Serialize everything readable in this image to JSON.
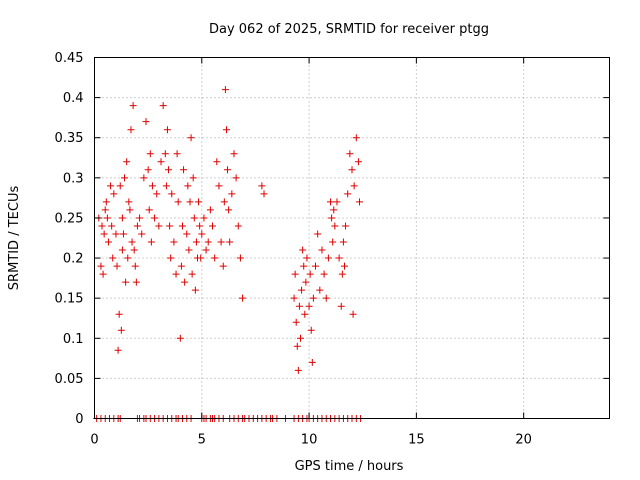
{
  "chart_data": {
    "type": "scatter",
    "title": "Day 062 of 2025, SRMTID for receiver ptgg",
    "xlabel": "GPS time / hours",
    "ylabel": "SRMTID / TECUs",
    "xlim": [
      0,
      24
    ],
    "ylim": [
      0,
      0.45
    ],
    "xticks": [
      0,
      5,
      10,
      15,
      20
    ],
    "xtick_labels": [
      "0",
      "5",
      "10",
      "15",
      "20"
    ],
    "yticks": [
      0,
      0.05,
      0.1,
      0.15,
      0.2,
      0.25,
      0.3,
      0.35,
      0.4,
      0.45
    ],
    "ytick_labels": [
      "0",
      "0.05",
      "0.1",
      "0.15",
      "0.2",
      "0.25",
      "0.3",
      "0.35",
      "0.4",
      "0.45"
    ],
    "grid": true,
    "marker": "+",
    "series": [
      {
        "name": "SRMTID",
        "color": "#e00000",
        "x": [
          0.2,
          0.3,
          0.35,
          0.4,
          0.45,
          0.5,
          0.55,
          0.6,
          0.65,
          0.75,
          0.8,
          0.85,
          0.9,
          1.0,
          1.05,
          1.1,
          1.15,
          1.2,
          1.25,
          1.3,
          1.3,
          1.35,
          1.4,
          1.45,
          1.5,
          1.55,
          1.6,
          1.65,
          1.7,
          1.75,
          1.8,
          1.85,
          1.9,
          1.95,
          2.0,
          2.1,
          2.2,
          2.3,
          2.4,
          2.5,
          2.55,
          2.6,
          2.65,
          2.7,
          2.8,
          2.9,
          3.0,
          3.1,
          3.2,
          3.3,
          3.35,
          3.4,
          3.45,
          3.5,
          3.55,
          3.6,
          3.7,
          3.8,
          3.85,
          3.9,
          4.0,
          4.05,
          4.1,
          4.15,
          4.2,
          4.3,
          4.35,
          4.4,
          4.45,
          4.5,
          4.55,
          4.6,
          4.65,
          4.7,
          4.75,
          4.8,
          4.85,
          4.9,
          4.95,
          5.0,
          5.1,
          5.2,
          5.3,
          5.4,
          5.5,
          5.6,
          5.7,
          5.8,
          5.9,
          6.0,
          6.05,
          6.1,
          6.15,
          6.2,
          6.25,
          6.3,
          6.4,
          6.5,
          6.6,
          6.7,
          6.8,
          6.9,
          7.8,
          7.9,
          9.3,
          9.35,
          9.4,
          9.45,
          9.5,
          9.55,
          9.6,
          9.65,
          9.7,
          9.75,
          9.8,
          9.85,
          9.9,
          10.0,
          10.05,
          10.1,
          10.15,
          10.2,
          10.3,
          10.4,
          10.5,
          10.6,
          10.7,
          10.8,
          10.9,
          11.0,
          11.05,
          11.1,
          11.15,
          11.2,
          11.3,
          11.4,
          11.5,
          11.55,
          11.6,
          11.65,
          11.7,
          11.8,
          11.9,
          12.0,
          12.05,
          12.1,
          12.2,
          12.3,
          12.35,
          0.1,
          0.3,
          0.5,
          0.7,
          0.9,
          1.1,
          1.2,
          2.0,
          2.1,
          2.3,
          2.4,
          2.6,
          2.8,
          3.0,
          3.2,
          3.4,
          3.6,
          3.8,
          3.9,
          4.1,
          4.3,
          4.5,
          5.0,
          5.1,
          5.2,
          5.4,
          5.5,
          5.6,
          5.8,
          6.0,
          6.3,
          6.5,
          6.7,
          6.9,
          7.0,
          7.2,
          7.4,
          7.6,
          7.8,
          8.0,
          8.2,
          8.3,
          8.5,
          8.9,
          9.3,
          9.5,
          9.7,
          9.9,
          10.0,
          10.2,
          10.4,
          10.6,
          10.8,
          11.0,
          11.2,
          11.4,
          11.6,
          11.8,
          12.0,
          12.2,
          12.4
        ],
        "y": [
          0.25,
          0.19,
          0.24,
          0.18,
          0.23,
          0.26,
          0.27,
          0.25,
          0.22,
          0.29,
          0.24,
          0.2,
          0.28,
          0.23,
          0.19,
          0.085,
          0.13,
          0.29,
          0.11,
          0.21,
          0.25,
          0.23,
          0.3,
          0.17,
          0.32,
          0.2,
          0.27,
          0.26,
          0.36,
          0.22,
          0.39,
          0.21,
          0.19,
          0.17,
          0.24,
          0.25,
          0.23,
          0.3,
          0.37,
          0.31,
          0.26,
          0.33,
          0.22,
          0.29,
          0.25,
          0.28,
          0.24,
          0.32,
          0.39,
          0.33,
          0.29,
          0.36,
          0.31,
          0.24,
          0.2,
          0.28,
          0.22,
          0.18,
          0.33,
          0.27,
          0.1,
          0.19,
          0.24,
          0.31,
          0.17,
          0.23,
          0.29,
          0.21,
          0.27,
          0.35,
          0.18,
          0.3,
          0.25,
          0.16,
          0.22,
          0.2,
          0.27,
          0.24,
          0.2,
          0.23,
          0.25,
          0.21,
          0.22,
          0.26,
          0.24,
          0.2,
          0.32,
          0.29,
          0.22,
          0.19,
          0.27,
          0.41,
          0.36,
          0.31,
          0.26,
          0.22,
          0.28,
          0.33,
          0.3,
          0.24,
          0.2,
          0.15,
          0.29,
          0.28,
          0.15,
          0.18,
          0.12,
          0.09,
          0.06,
          0.14,
          0.1,
          0.16,
          0.21,
          0.19,
          0.13,
          0.17,
          0.2,
          0.14,
          0.18,
          0.11,
          0.07,
          0.15,
          0.19,
          0.23,
          0.16,
          0.21,
          0.18,
          0.15,
          0.2,
          0.27,
          0.25,
          0.22,
          0.26,
          0.24,
          0.27,
          0.2,
          0.14,
          0.18,
          0.22,
          0.19,
          0.24,
          0.28,
          0.33,
          0.31,
          0.13,
          0.29,
          0.35,
          0.32,
          0.27,
          0,
          0,
          0,
          0,
          0,
          0,
          0,
          0,
          0,
          0,
          0,
          0,
          0,
          0,
          0,
          0,
          0,
          0,
          0,
          0,
          0,
          0,
          0,
          0,
          0,
          0,
          0,
          0,
          0,
          0,
          0,
          0,
          0,
          0,
          0,
          0,
          0,
          0,
          0,
          0,
          0,
          0,
          0,
          0,
          0,
          0,
          0,
          0,
          0,
          0,
          0,
          0,
          0,
          0,
          0,
          0,
          0,
          0,
          0,
          0,
          0
        ]
      }
    ]
  }
}
